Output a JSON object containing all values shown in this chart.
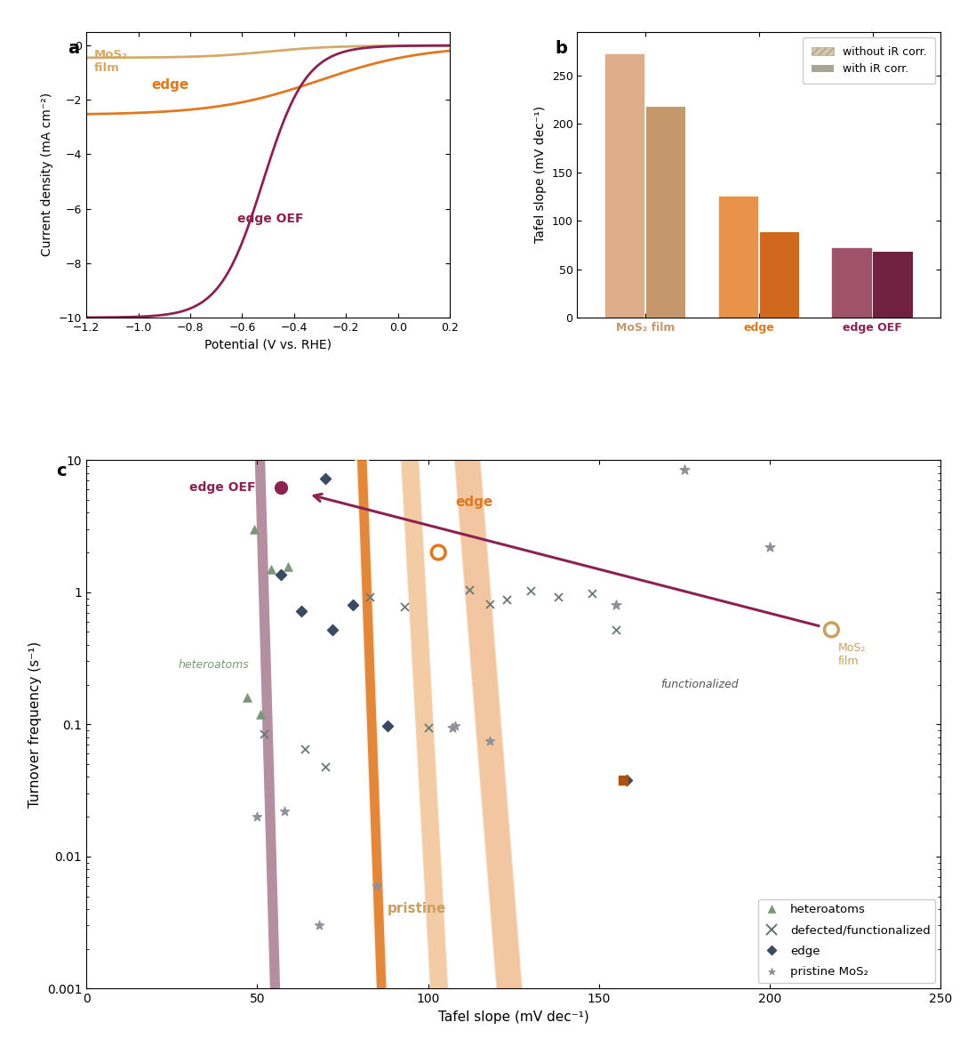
{
  "panel_a": {
    "mos2_film_color": "#D4A96A",
    "edge_color": "#E07820",
    "edge_oef_color": "#8B2252",
    "xlim": [
      -1.2,
      0.2
    ],
    "ylim": [
      -10,
      0.5
    ],
    "xlabel": "Potential (V vs. RHE)",
    "ylabel": "Current density (mA cm⁻²)",
    "yticks": [
      0,
      -2,
      -4,
      -6,
      -8,
      -10
    ]
  },
  "panel_b": {
    "categories": [
      "MoS₂ film",
      "edge",
      "edge OEF"
    ],
    "without_ir": [
      272,
      125,
      72
    ],
    "with_ir": [
      218,
      88,
      68
    ],
    "colors_without": [
      "#DEAD8A",
      "#E8924A",
      "#A0526A"
    ],
    "colors_with": [
      "#C4986A",
      "#D06820",
      "#722040"
    ],
    "ylabel": "Tafel slope (mV dec⁻¹)",
    "ylim": [
      0,
      295
    ],
    "yticks": [
      0,
      50,
      100,
      150,
      200,
      250
    ],
    "tick_colors": [
      "#C4986A",
      "#E07820",
      "#8B2252"
    ]
  },
  "panel_c": {
    "xlabel": "Tafel slope (mV dec⁻¹)",
    "ylabel": "Turnover frequency (s⁻¹)",
    "xlim": [
      0,
      250
    ],
    "ylim_log": [
      0.001,
      10
    ]
  }
}
